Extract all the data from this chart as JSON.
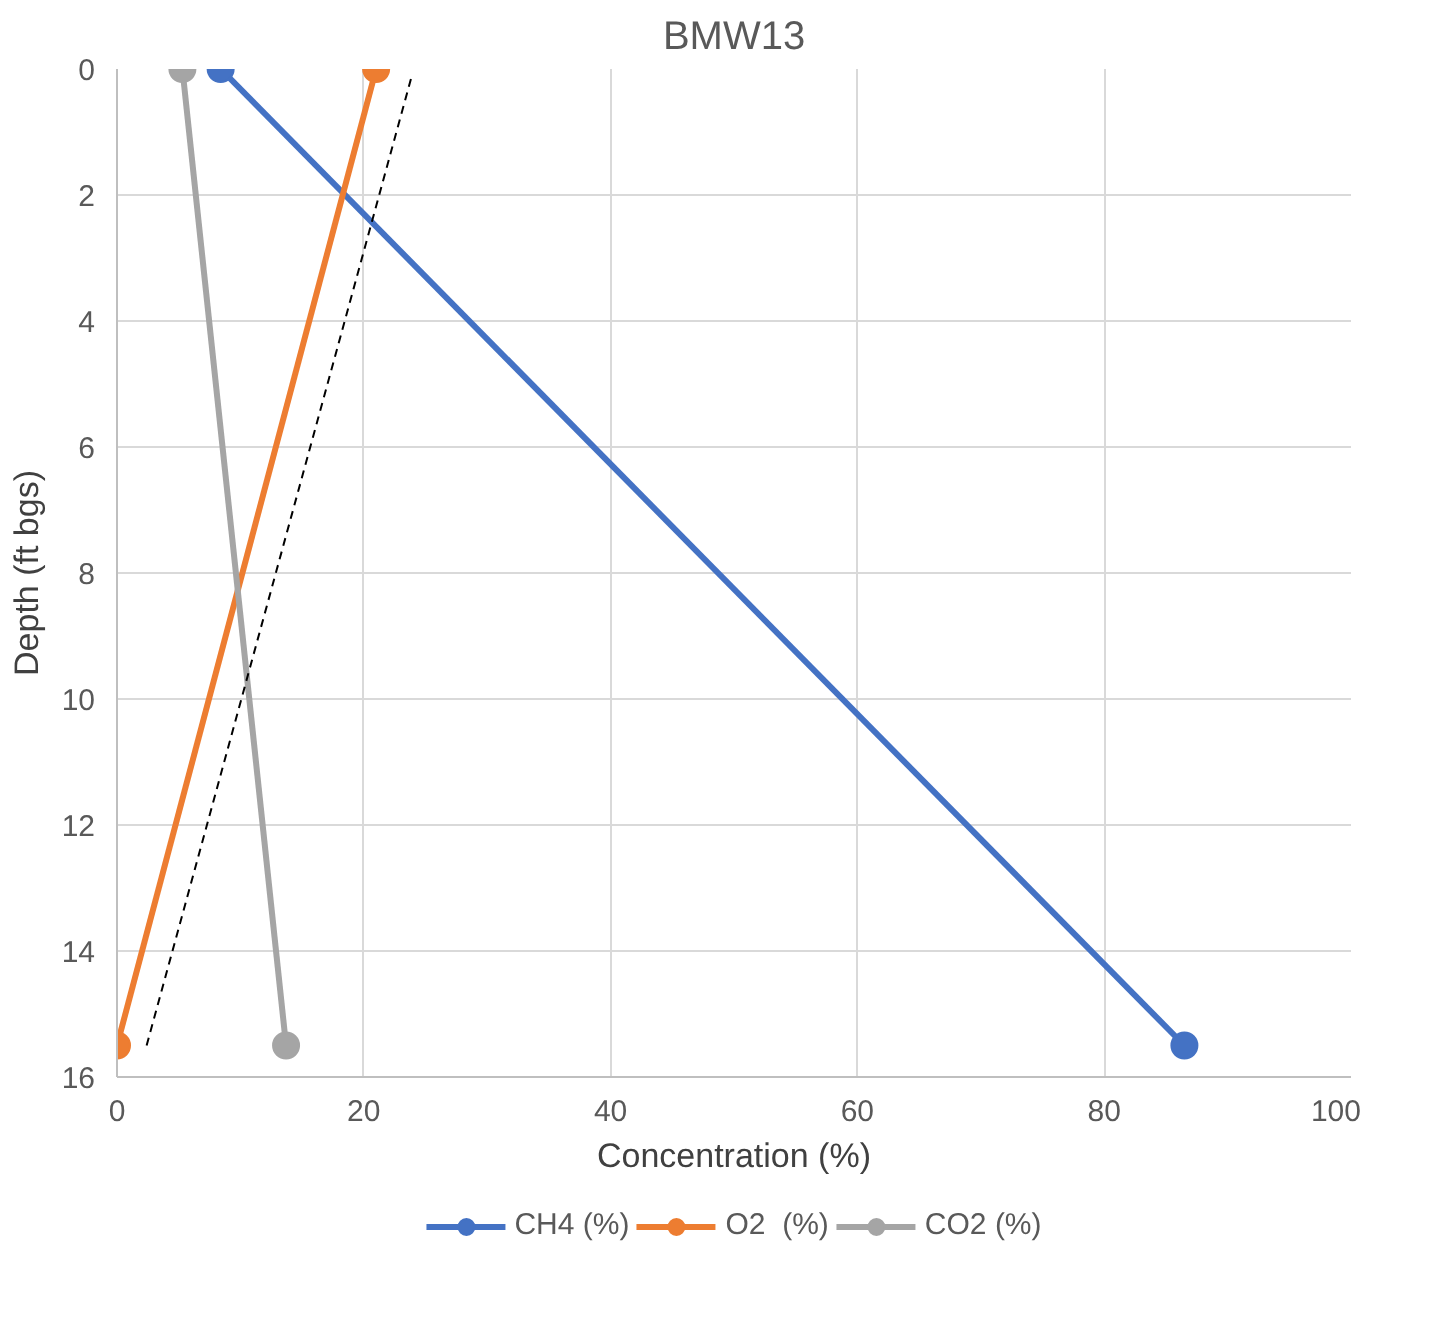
{
  "chart_data": {
    "type": "line",
    "title": "BMW13",
    "xlabel": "Concentration (%)",
    "ylabel": "Depth (ft bgs)",
    "xlim": [
      0,
      100
    ],
    "xticks": [
      0,
      20,
      40,
      60,
      80,
      100
    ],
    "ylim": [
      16,
      0
    ],
    "yticks": [
      0,
      2,
      4,
      6,
      8,
      10,
      12,
      14,
      16
    ],
    "grid": true,
    "legend": "bottom",
    "marker": "circle",
    "line_style": "solid",
    "series": [
      {
        "name": "CH4 (%)",
        "color": "#4472c4",
        "x": [
          8.4,
          86.5
        ],
        "values": [
          0,
          15.5
        ]
      },
      {
        "name": "O2  (%)",
        "color": "#ed7d31",
        "x": [
          21,
          0
        ],
        "values": [
          0,
          15.5
        ]
      },
      {
        "name": "CO2 (%)",
        "color": "#a5a5a5",
        "x": [
          5.3,
          13.7
        ],
        "values": [
          0,
          15.5
        ]
      },
      {
        "type": "line",
        "color": "#000000",
        "x": [
          2.4,
          23.9
        ],
        "values": [
          15.5,
          0.1
        ],
        "marker": "none",
        "line_style": "dashed"
      }
    ]
  }
}
